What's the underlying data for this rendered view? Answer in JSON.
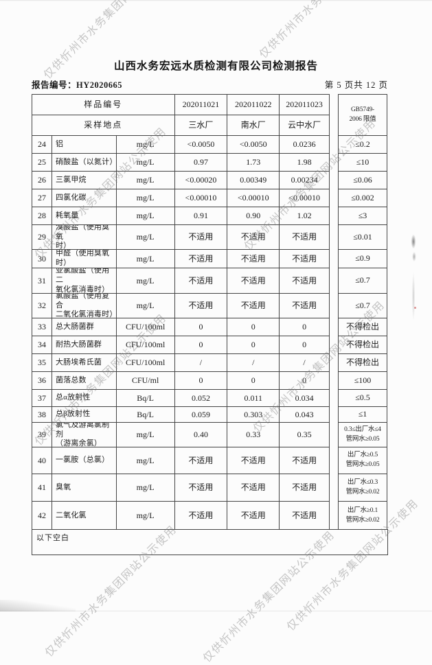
{
  "watermark": {
    "text": "仅供忻州市水务集团网站公示使用"
  },
  "header": {
    "title": "山西水务宏远水质检测有限公司检测报告",
    "report_no": "报告编号：HY2020665",
    "page_info": "第 5 页共 12 页"
  },
  "table": {
    "sample_id_label": "样品编号",
    "sample_ids": [
      "202011021",
      "202011022",
      "202011023"
    ],
    "location_label": "采样地点",
    "locations": [
      "三水厂",
      "南水厂",
      "云中水厂"
    ],
    "limit_header": [
      "GB5749-",
      "2006 限值"
    ],
    "rows": [
      {
        "no": "24",
        "name": "铝",
        "unit": "mg/L",
        "values": [
          "<0.0050",
          "<0.0050",
          "0.0236"
        ],
        "limit": [
          "≤0.2"
        ]
      },
      {
        "no": "25",
        "name": "硝酸盐（以氮计）",
        "unit": "mg/L",
        "values": [
          "0.97",
          "1.73",
          "1.98"
        ],
        "limit": [
          "≤10"
        ]
      },
      {
        "no": "26",
        "name": "三氯甲烷",
        "unit": "mg/L",
        "values": [
          "<0.00020",
          "0.00349",
          "0.00234"
        ],
        "limit": [
          "≤0.06"
        ]
      },
      {
        "no": "27",
        "name": "四氯化碳",
        "unit": "mg/L",
        "values": [
          "<0.00010",
          "<0.00010",
          "<0.00010"
        ],
        "limit": [
          "≤0.002"
        ]
      },
      {
        "no": "28",
        "name": "耗氧量",
        "unit": "mg/L",
        "values": [
          "0.91",
          "0.90",
          "1.02"
        ],
        "limit": [
          "≤3"
        ]
      },
      {
        "no": "29",
        "name": "溴酸盐（使用臭氧\n时）",
        "unit": "mg/L",
        "values": [
          "不适用",
          "不适用",
          "不适用"
        ],
        "limit": [
          "≤0.01"
        ]
      },
      {
        "no": "30",
        "name": "甲醛（使用臭氧时）",
        "unit": "mg/L",
        "values": [
          "不适用",
          "不适用",
          "不适用"
        ],
        "limit": [
          "≤0.9"
        ]
      },
      {
        "no": "31",
        "name": "亚氯酸盐（使用二\n氧化氯消毒时）",
        "unit": "mg/L",
        "values": [
          "不适用",
          "不适用",
          "不适用"
        ],
        "limit": [
          "≤0.7"
        ]
      },
      {
        "no": "32",
        "name": "氯酸盐（使用复合\n二氧化氯消毒时）",
        "unit": "mg/L",
        "values": [
          "不适用",
          "不适用",
          "不适用"
        ],
        "limit": [
          "≤0.7"
        ]
      },
      {
        "no": "33",
        "name": "总大肠菌群",
        "unit": "CFU/100ml",
        "values": [
          "0",
          "0",
          "0"
        ],
        "limit": [
          "不得检出"
        ]
      },
      {
        "no": "34",
        "name": "耐热大肠菌群",
        "unit": "CFU/100ml",
        "values": [
          "0",
          "0",
          "0"
        ],
        "limit": [
          "不得检出"
        ]
      },
      {
        "no": "35",
        "name": "大肠埃希氏菌",
        "unit": "CFU/100ml",
        "values": [
          "/",
          "/",
          "/"
        ],
        "limit": [
          "不得检出"
        ]
      },
      {
        "no": "36",
        "name": "菌落总数",
        "unit": "CFU/ml",
        "values": [
          "0",
          "0",
          "0"
        ],
        "limit": [
          "≤100"
        ]
      },
      {
        "no": "37",
        "name": "总α放射性",
        "unit": "Bq/L",
        "values": [
          "0.052",
          "0.011",
          "0.034"
        ],
        "limit": [
          "≤0.5"
        ]
      },
      {
        "no": "38",
        "name": "总β放射性",
        "unit": "Bq/L",
        "values": [
          "0.059",
          "0.303",
          "0.043"
        ],
        "limit": [
          "≤1"
        ]
      },
      {
        "no": "39",
        "name": "氯气及游离氯制剂\n（游离余氯）",
        "unit": "mg/L",
        "values": [
          "0.40",
          "0.33",
          "0.35"
        ],
        "limit": [
          "0.3≤出厂水≤4",
          "管网水≥0.05"
        ]
      },
      {
        "no": "40",
        "name": "一氯胺（总氯）",
        "unit": "mg/L",
        "values": [
          "不适用",
          "不适用",
          "不适用"
        ],
        "limit": [
          "出厂水≥0.5",
          "管网水≥0.05"
        ]
      },
      {
        "no": "41",
        "name": "臭氧",
        "unit": "mg/L",
        "values": [
          "不适用",
          "不适用",
          "不适用"
        ],
        "limit": [
          "出厂水≤0.3",
          "管网水≥0.02"
        ]
      },
      {
        "no": "42",
        "name": "二氧化氯",
        "unit": "mg/L",
        "values": [
          "不适用",
          "不适用",
          "不适用"
        ],
        "limit": [
          "出厂水≥0.1",
          "管网水≥0.02"
        ]
      }
    ],
    "footer_note": "以下空白"
  }
}
